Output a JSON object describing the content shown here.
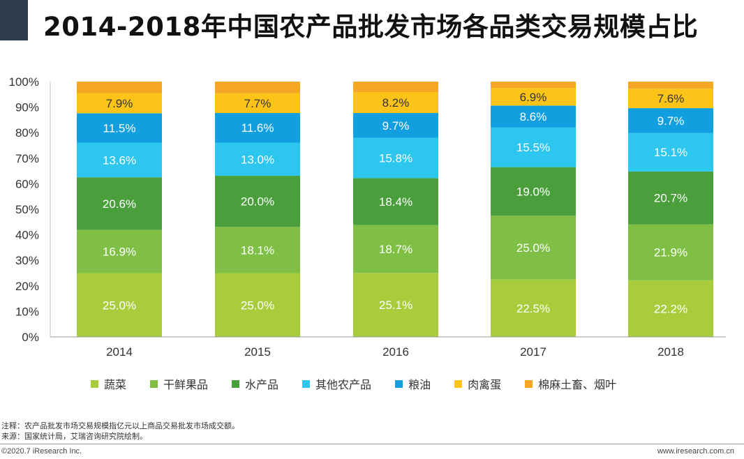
{
  "title": "2014-2018年中国农产品批发市场各品类交易规模占比",
  "chart_data": {
    "type": "bar",
    "stacked": true,
    "categories": [
      "2014",
      "2015",
      "2016",
      "2017",
      "2018"
    ],
    "ylim": [
      0,
      100
    ],
    "yticks": [
      "0%",
      "10%",
      "20%",
      "30%",
      "40%",
      "50%",
      "60%",
      "70%",
      "80%",
      "90%",
      "100%"
    ],
    "legend_position": "bottom",
    "series": [
      {
        "name": "蔬菜",
        "color": "#a9cc3c",
        "values": [
          25.0,
          25.0,
          25.1,
          22.5,
          22.2
        ],
        "labels": [
          "25.0%",
          "25.0%",
          "25.1%",
          "22.5%",
          "22.2%"
        ]
      },
      {
        "name": "干鲜果品",
        "color": "#7fbf45",
        "values": [
          16.9,
          18.1,
          18.7,
          25.0,
          21.9
        ],
        "labels": [
          "16.9%",
          "18.1%",
          "18.7%",
          "25.0%",
          "21.9%"
        ]
      },
      {
        "name": "水产品",
        "color": "#4b9e3c",
        "values": [
          20.6,
          20.0,
          18.4,
          19.0,
          20.7
        ],
        "labels": [
          "20.6%",
          "20.0%",
          "18.4%",
          "19.0%",
          "20.7%"
        ]
      },
      {
        "name": "其他农产品",
        "color": "#2cc6ef",
        "values": [
          13.6,
          13.0,
          15.8,
          15.5,
          15.1
        ],
        "labels": [
          "13.6%",
          "13.0%",
          "15.8%",
          "15.5%",
          "15.1%"
        ]
      },
      {
        "name": "粮油",
        "color": "#129fe0",
        "values": [
          11.5,
          11.6,
          9.7,
          8.6,
          9.7
        ],
        "labels": [
          "11.5%",
          "11.6%",
          "9.7%",
          "8.6%",
          "9.7%"
        ]
      },
      {
        "name": "肉禽蛋",
        "color": "#fcc419",
        "values": [
          7.9,
          7.7,
          8.2,
          6.9,
          7.6
        ],
        "labels": [
          "7.9%",
          "7.7%",
          "8.2%",
          "6.9%",
          "7.6%"
        ]
      },
      {
        "name": "棉麻土畜、烟叶",
        "color": "#f5a623",
        "values": [
          4.5,
          4.6,
          4.1,
          2.5,
          2.8
        ],
        "labels": [
          "",
          "",
          "",
          "",
          ""
        ]
      }
    ]
  },
  "notes": {
    "note": "注释：农产品批发市场交易规模指亿元以上商品交易批发市场成交额。",
    "source": "来源：国家统计局，艾瑞咨询研究院绘制。"
  },
  "footer": {
    "copyright": "©2020.7 iResearch Inc.",
    "website": "www.iresearch.com.cn"
  }
}
